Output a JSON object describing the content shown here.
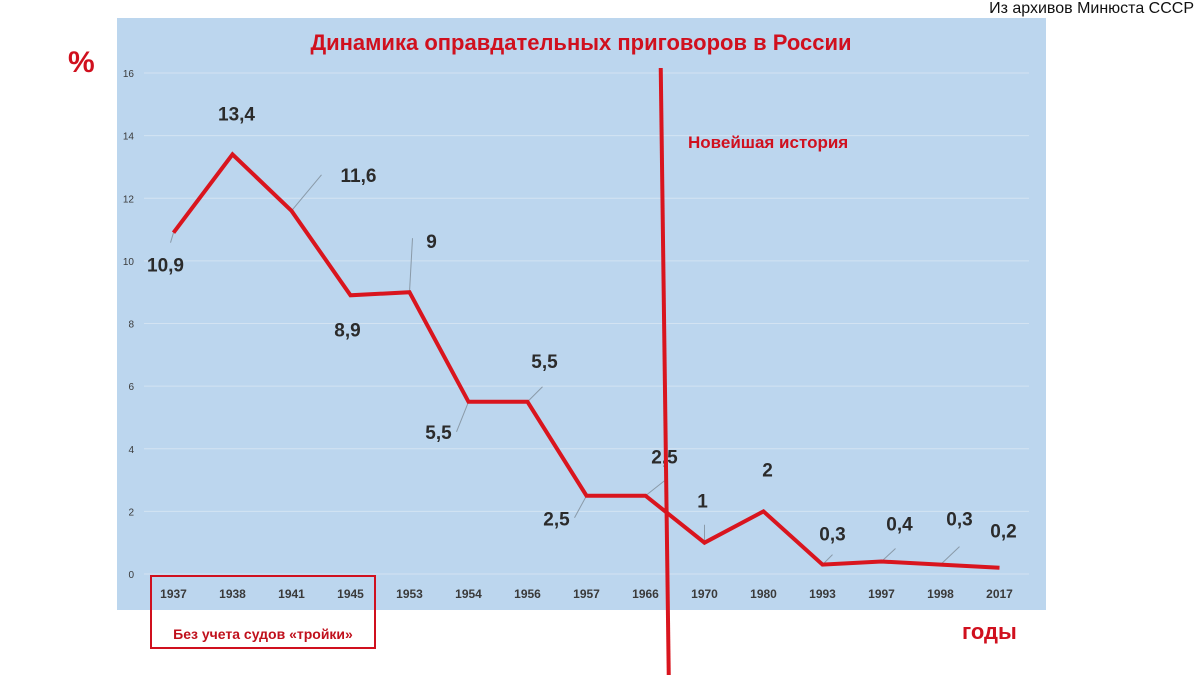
{
  "source_note": "Из архивов Минюста СССР",
  "percent_sign": "%",
  "x_axis_label": "годы",
  "annotations": {
    "modern_history": "Новейшая история",
    "without_troika": "Без учета судов «тройки»"
  },
  "colors": {
    "line": "#d9151e",
    "title": "#d0101e",
    "panel": "#bcd6ee",
    "grid": "#d3e3f2",
    "data_label": "#2b2b2b",
    "tick_label": "#3a3a3a"
  },
  "chart_data": {
    "type": "line",
    "title": "Динамика оправдательных приговоров в России",
    "xlabel": "годы",
    "ylabel": "%",
    "categories": [
      "1937",
      "1938",
      "1941",
      "1945",
      "1953",
      "1954",
      "1956",
      "1957",
      "1966",
      "1970",
      "1980",
      "1993",
      "1997",
      "1998",
      "2017"
    ],
    "series": [
      {
        "values": [
          10.9,
          13.4,
          11.6,
          8.9,
          9,
          5.5,
          5.5,
          2.5,
          2.5,
          1,
          2,
          0.3,
          0.4,
          0.3,
          0.2
        ]
      }
    ],
    "data_labels": [
      "10,9",
      "13,4",
      "11,6",
      "8,9",
      "9",
      "5,5",
      "5,5",
      "2,5",
      "2,5",
      "1",
      "2",
      "0,3",
      "0,4",
      "0,3",
      "0,2"
    ],
    "y_ticks": [
      0,
      2,
      4,
      6,
      8,
      10,
      12,
      14,
      16
    ],
    "ylim": [
      0,
      16
    ],
    "grid": true,
    "legend": "none",
    "vertical_marker_between": [
      "1966",
      "1970"
    ]
  }
}
